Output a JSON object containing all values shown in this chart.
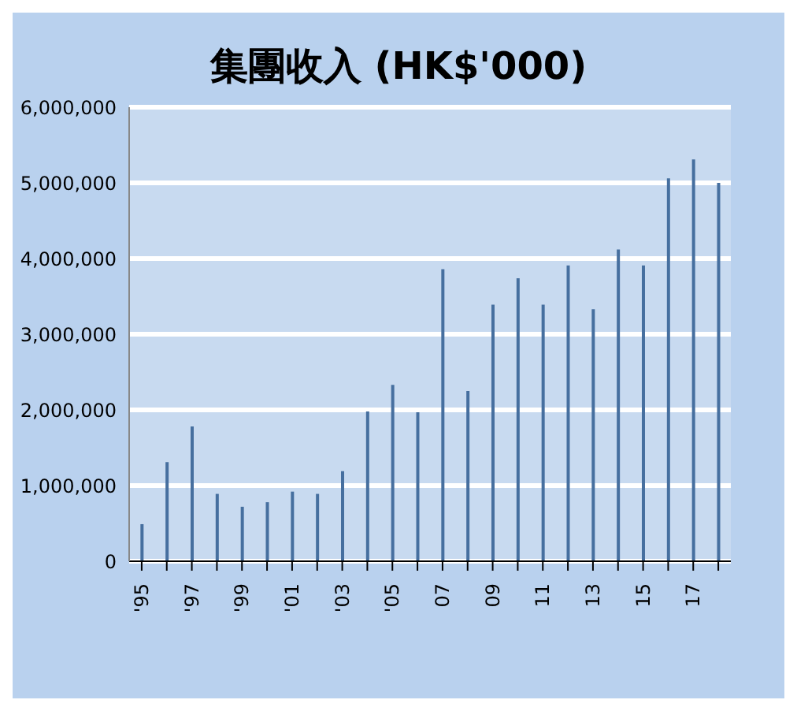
{
  "chart_data": {
    "type": "bar",
    "title": "集團收入 (HK$'000)",
    "categories": [
      "'95",
      null,
      "'97",
      null,
      "'99",
      null,
      "'01",
      null,
      "'03",
      null,
      "'05",
      null,
      "07",
      null,
      "09",
      null,
      "11",
      null,
      "13",
      null,
      "15",
      null,
      "17",
      null
    ],
    "values": [
      490000,
      1310000,
      1780000,
      890000,
      720000,
      780000,
      920000,
      890000,
      1190000,
      1980000,
      2330000,
      1970000,
      3860000,
      2250000,
      3390000,
      3740000,
      3390000,
      3910000,
      3330000,
      4120000,
      3910000,
      5060000,
      5310000,
      5000000
    ],
    "color": "#466f9f",
    "ylim": [
      0,
      6000000
    ],
    "yticks": [
      {
        "value": 0,
        "label": "0"
      },
      {
        "value": 1000000,
        "label": "1,000,000"
      },
      {
        "value": 2000000,
        "label": "2,000,000"
      },
      {
        "value": 3000000,
        "label": "3,000,000"
      },
      {
        "value": 4000000,
        "label": "4,000,000"
      },
      {
        "value": 5000000,
        "label": "5,000,000"
      },
      {
        "value": 6000000,
        "label": "6,000,000"
      }
    ],
    "grid": "y"
  }
}
